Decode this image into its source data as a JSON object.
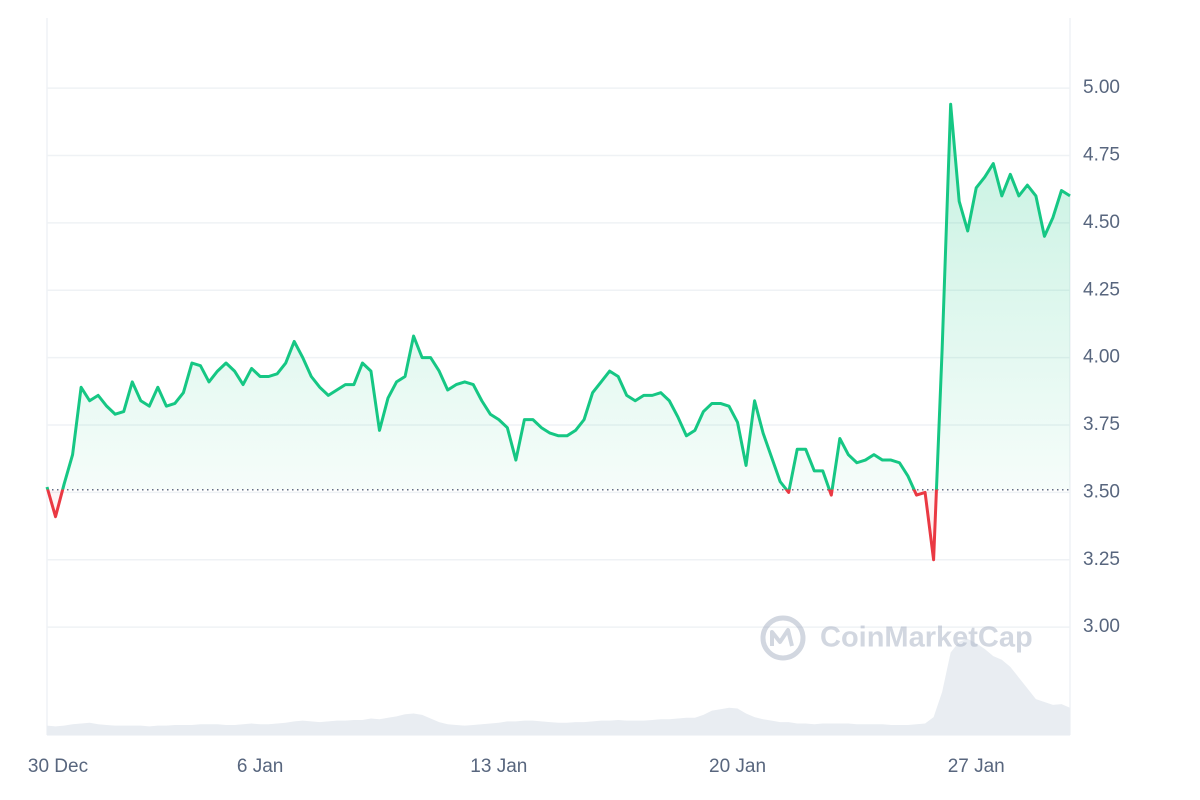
{
  "chart_data": {
    "type": "line",
    "categories": [
      "30 Dec",
      null,
      null,
      null,
      null,
      null,
      null,
      null,
      null,
      null,
      null,
      null,
      null,
      null,
      null,
      null,
      null,
      null,
      null,
      null,
      null,
      null,
      null,
      null,
      null,
      "6 Jan",
      null,
      null,
      null,
      null,
      null,
      null,
      null,
      null,
      null,
      null,
      null,
      null,
      null,
      null,
      null,
      null,
      null,
      null,
      null,
      null,
      null,
      null,
      null,
      null,
      null,
      null,
      null,
      "13 Jan",
      null,
      null,
      null,
      null,
      null,
      null,
      null,
      null,
      null,
      null,
      null,
      null,
      null,
      null,
      null,
      null,
      null,
      null,
      null,
      null,
      null,
      null,
      null,
      null,
      null,
      null,
      null,
      "20 Jan",
      null,
      null,
      null,
      null,
      null,
      null,
      null,
      null,
      null,
      null,
      null,
      null,
      null,
      null,
      null,
      null,
      null,
      null,
      null,
      null,
      null,
      null,
      null,
      null,
      null,
      null,
      null,
      "27 Jan",
      null,
      null,
      null,
      null,
      null,
      null,
      null,
      null,
      null,
      null,
      null
    ],
    "series": [
      {
        "color": "#16c784",
        "negative_color": "#ea3943",
        "values": [
          3.52,
          3.41,
          3.53,
          3.64,
          3.89,
          3.84,
          3.86,
          3.82,
          3.79,
          3.8,
          3.91,
          3.84,
          3.82,
          3.89,
          3.82,
          3.83,
          3.87,
          3.98,
          3.97,
          3.91,
          3.95,
          3.98,
          3.95,
          3.9,
          3.96,
          3.93,
          3.93,
          3.94,
          3.98,
          4.06,
          4.0,
          3.93,
          3.89,
          3.86,
          3.88,
          3.9,
          3.9,
          3.98,
          3.95,
          3.73,
          3.85,
          3.91,
          3.93,
          4.08,
          4.0,
          4.0,
          3.95,
          3.88,
          3.9,
          3.91,
          3.9,
          3.84,
          3.79,
          3.77,
          3.74,
          3.62,
          3.77,
          3.77,
          3.74,
          3.72,
          3.71,
          3.71,
          3.73,
          3.77,
          3.87,
          3.91,
          3.95,
          3.93,
          3.86,
          3.84,
          3.86,
          3.86,
          3.87,
          3.84,
          3.78,
          3.71,
          3.73,
          3.8,
          3.83,
          3.83,
          3.82,
          3.76,
          3.6,
          3.84,
          3.72,
          3.63,
          3.54,
          3.5,
          3.66,
          3.66,
          3.58,
          3.58,
          3.49,
          3.7,
          3.64,
          3.61,
          3.62,
          3.64,
          3.62,
          3.62,
          3.61,
          3.56,
          3.49,
          3.5,
          3.25,
          4.03,
          4.94,
          4.58,
          4.47,
          4.63,
          4.67,
          4.72,
          4.6,
          4.68,
          4.6,
          4.64,
          4.6,
          4.45,
          4.52,
          4.62,
          4.6
        ]
      },
      {
        "axis": "y2",
        "color": "#e9edf2",
        "values": [
          1.3,
          1.2,
          1.3,
          1.5,
          1.6,
          1.7,
          1.5,
          1.4,
          1.3,
          1.3,
          1.3,
          1.3,
          1.2,
          1.3,
          1.3,
          1.4,
          1.4,
          1.4,
          1.5,
          1.5,
          1.5,
          1.4,
          1.4,
          1.5,
          1.6,
          1.5,
          1.5,
          1.6,
          1.7,
          1.9,
          2.0,
          1.9,
          1.8,
          1.9,
          2.0,
          2.0,
          2.1,
          2.1,
          2.3,
          2.2,
          2.4,
          2.6,
          2.9,
          3.0,
          2.8,
          2.3,
          1.8,
          1.5,
          1.4,
          1.3,
          1.4,
          1.5,
          1.6,
          1.7,
          1.9,
          1.9,
          2.0,
          2.0,
          1.9,
          1.8,
          1.7,
          1.7,
          1.8,
          1.8,
          1.9,
          2.0,
          2.0,
          2.1,
          2.0,
          2.0,
          2.0,
          2.1,
          2.2,
          2.2,
          2.3,
          2.4,
          2.4,
          2.8,
          3.4,
          3.6,
          3.8,
          3.7,
          3.0,
          2.5,
          2.2,
          2.0,
          1.8,
          1.8,
          1.6,
          1.6,
          1.5,
          1.6,
          1.6,
          1.6,
          1.6,
          1.5,
          1.5,
          1.5,
          1.5,
          1.4,
          1.4,
          1.4,
          1.5,
          1.6,
          2.5,
          6.0,
          11.5,
          13.0,
          13.4,
          12.8,
          12.0,
          11.0,
          10.5,
          9.5,
          8.0,
          6.5,
          5.0,
          4.6,
          4.2,
          4.3,
          3.8
        ]
      }
    ],
    "baseline": 3.51,
    "ylim": [
      2.6,
      5.26
    ],
    "yticks": [
      {
        "value": 3,
        "label": "3.00"
      },
      3.25,
      {
        "value": 3.5,
        "label": "3.50"
      },
      3.75,
      {
        "value": 4,
        "label": "4.00"
      },
      4.25,
      {
        "value": 4.5,
        "label": "4.50"
      },
      4.75,
      {
        "value": 5,
        "label": "5.00"
      }
    ],
    "y2lim": [
      0,
      100
    ],
    "grid": true,
    "watermark": "CoinMarketCap"
  }
}
